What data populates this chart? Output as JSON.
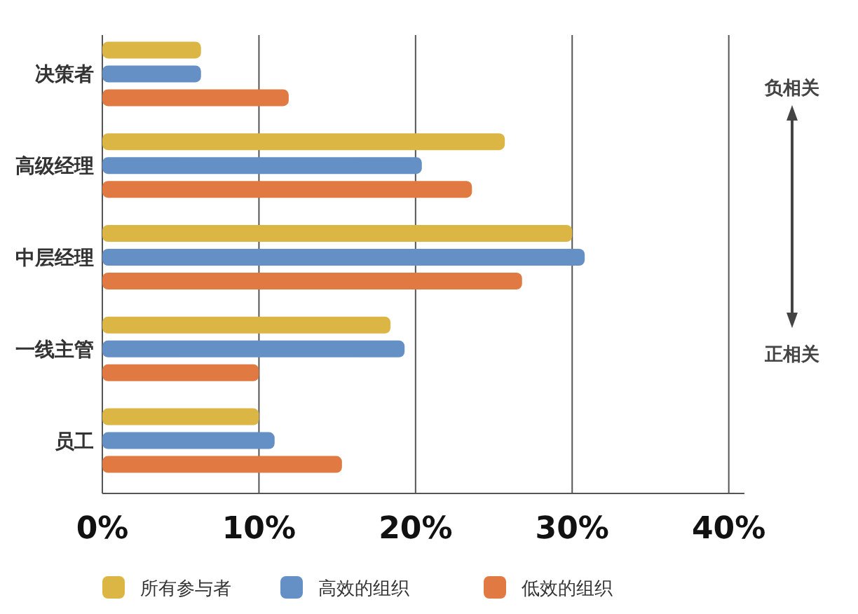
{
  "chart_data": {
    "type": "bar",
    "orientation": "horizontal",
    "categories": [
      "决策者",
      "高级经理",
      "中层经理",
      "一线主管",
      "员工"
    ],
    "series": [
      {
        "name": "所有参与者",
        "color": "#dcb645",
        "values": [
          6.3,
          25.7,
          30,
          18.4,
          10
        ]
      },
      {
        "name": "高效的组织",
        "color": "#6490c6",
        "values": [
          6.3,
          20.4,
          30.8,
          19.3,
          11
        ]
      },
      {
        "name": "低效的组织",
        "color": "#e07a42",
        "values": [
          11.9,
          23.6,
          26.8,
          10,
          15.3
        ]
      }
    ],
    "xlim": [
      0,
      41
    ],
    "xticks": [
      {
        "value": 0,
        "label": "0%"
      },
      {
        "value": 10,
        "label": "10%"
      },
      {
        "value": 20,
        "label": "20%"
      },
      {
        "value": 30,
        "label": "30%"
      },
      {
        "value": 40,
        "label": "40%"
      }
    ],
    "grid": "x",
    "legend": "bottom",
    "annotations": [
      "负相关",
      "正相关"
    ]
  }
}
